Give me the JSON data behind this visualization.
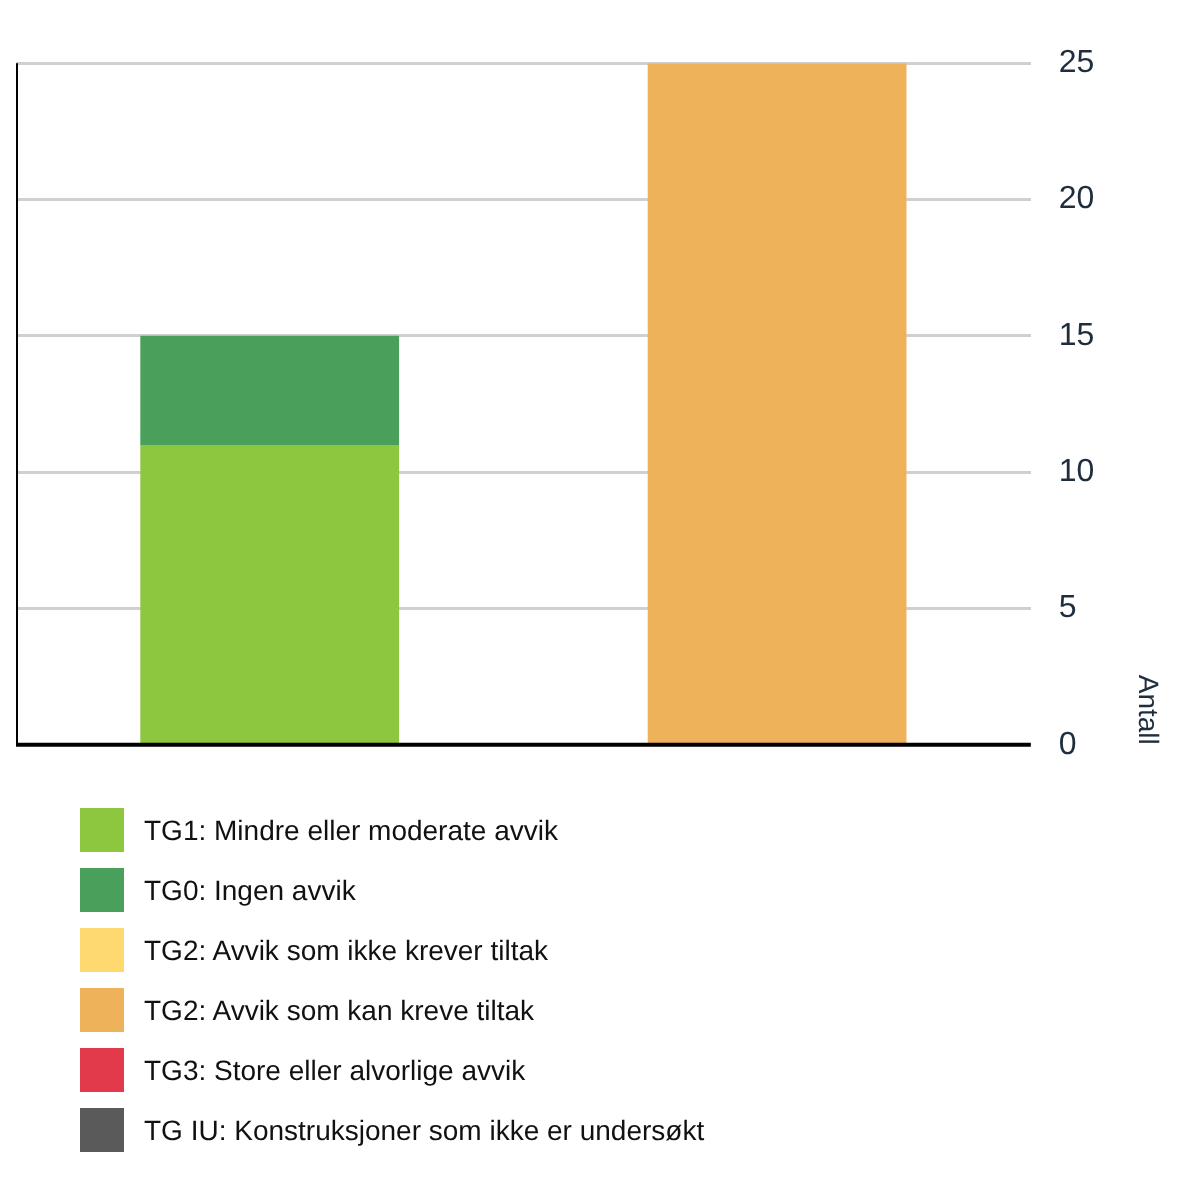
{
  "chart_data": {
    "type": "bar",
    "ylabel": "Antall",
    "categories": [
      null,
      null
    ],
    "stacked": true,
    "ylim": [
      0,
      25
    ],
    "yticks": [
      0,
      5,
      10,
      15,
      20,
      25
    ],
    "grid": "y",
    "legend": "bottom left",
    "series": [
      {
        "name": "TG1: Mindre eller moderate avvik",
        "color": "#8dc63f",
        "values": [
          11,
          0
        ]
      },
      {
        "name": "TG0: Ingen avvik",
        "color": "#4aa05a",
        "values": [
          4,
          0
        ]
      },
      {
        "name": "TG2: Avvik som ikke krever tiltak",
        "color": "#fed96f",
        "values": [
          0,
          0
        ]
      },
      {
        "name": "TG2: Avvik som kan kreve tiltak",
        "color": "#edb25a",
        "values": [
          0,
          25
        ]
      },
      {
        "name": "TG3: Store eller alvorlige avvik",
        "color": "#e33a4b",
        "values": [
          0,
          0
        ]
      },
      {
        "name": "TG IU: Konstruksjoner som ikke er undersøkt",
        "color": "#5a5a5a",
        "values": [
          0,
          0
        ]
      }
    ]
  }
}
